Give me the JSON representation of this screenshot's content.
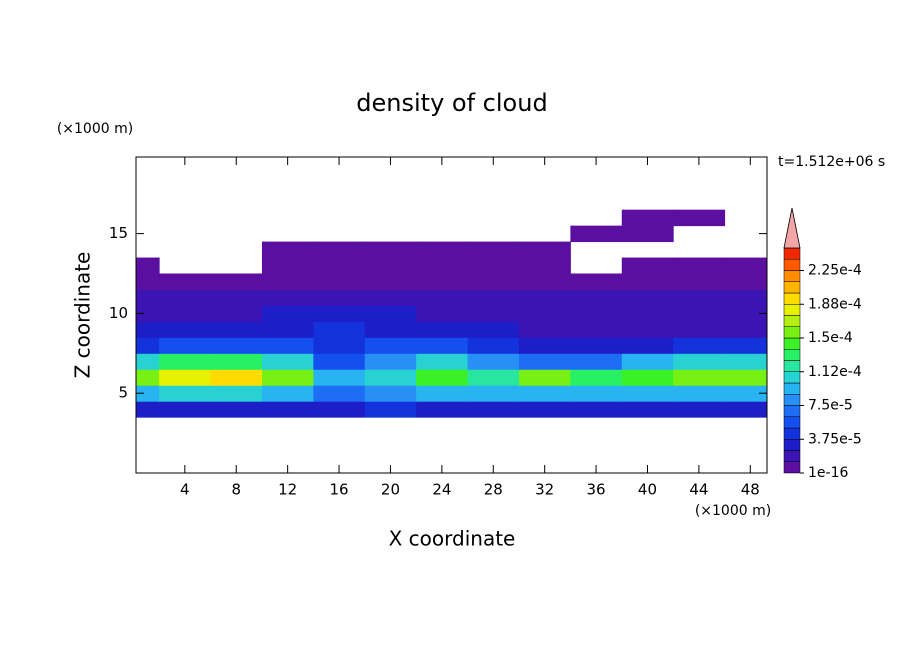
{
  "chart_data": {
    "type": "contour",
    "title": "density of cloud",
    "xlabel": "X coordinate",
    "ylabel": "Z coordinate",
    "x_unit": "(×1000 m)",
    "y_unit": "(×1000 m)",
    "time_label": "t=1.512e+06 s",
    "xlim": [
      0.2,
      49.3
    ],
    "ylim": [
      0,
      19.8
    ],
    "xticks": [
      4,
      8,
      12,
      16,
      20,
      24,
      28,
      32,
      36,
      40,
      44,
      48
    ],
    "yticks": [
      5,
      10,
      15
    ],
    "x": [
      0,
      4,
      8,
      12,
      16,
      20,
      24,
      28,
      32,
      36,
      40,
      44,
      48
    ],
    "z": [
      4,
      5,
      6,
      7,
      8,
      9,
      10,
      11,
      12,
      13,
      14,
      15,
      16
    ],
    "z_values": [
      [
        3e-05,
        3.5e-05,
        3.5e-05,
        3e-05,
        3e-05,
        4e-05,
        3e-05,
        3e-05,
        3e-05,
        3e-05,
        3e-05,
        3e-05,
        3e-05
      ],
      [
        9e-05,
        0.0001,
        0.0001,
        9e-05,
        7e-05,
        8e-05,
        9e-05,
        9e-05,
        9e-05,
        9e-05,
        9e-05,
        9e-05,
        9e-05
      ],
      [
        0.00015,
        0.00018,
        0.00019,
        0.00016,
        9e-05,
        0.00011,
        0.00014,
        0.00012,
        0.00015,
        0.00013,
        0.00014,
        0.00015,
        0.00016
      ],
      [
        0.00011,
        0.00013,
        0.00013,
        0.0001,
        6e-05,
        8e-05,
        0.0001,
        8e-05,
        7e-05,
        7e-05,
        9e-05,
        0.0001,
        0.0001
      ],
      [
        4e-05,
        5e-05,
        5e-05,
        5e-05,
        4e-05,
        5e-05,
        5e-05,
        4e-05,
        3.5e-05,
        3.5e-05,
        3.5e-05,
        4e-05,
        4e-05
      ],
      [
        2.5e-05,
        2.5e-05,
        2.5e-05,
        3e-05,
        4e-05,
        3e-05,
        2.5e-05,
        2.5e-05,
        2e-05,
        2e-05,
        2e-05,
        2e-05,
        2e-05
      ],
      [
        2e-05,
        2e-05,
        1.5e-05,
        2.5e-05,
        3.5e-05,
        2.5e-05,
        2e-05,
        1.5e-05,
        1.5e-05,
        1.5e-05,
        2e-05,
        2e-05,
        2e-05
      ],
      [
        1.5e-05,
        1.5e-05,
        1.5e-05,
        2e-05,
        2e-05,
        2e-05,
        1.5e-05,
        1.5e-05,
        1.5e-05,
        1.5e-05,
        1.5e-05,
        1.5e-05,
        1.5e-05
      ],
      [
        1e-05,
        1e-05,
        1e-05,
        1e-05,
        1e-05,
        1e-05,
        1e-05,
        1e-05,
        1e-05,
        1e-05,
        1e-05,
        1e-05,
        1e-05
      ],
      [
        5e-06,
        null,
        null,
        5e-06,
        5e-06,
        5e-06,
        5e-06,
        5e-06,
        5e-06,
        null,
        5e-06,
        5e-06,
        5e-06
      ],
      [
        null,
        null,
        null,
        5e-06,
        5e-06,
        5e-06,
        5e-06,
        5e-06,
        5e-06,
        null,
        null,
        null,
        null
      ],
      [
        null,
        null,
        null,
        null,
        null,
        null,
        null,
        null,
        null,
        5e-06,
        5e-06,
        null,
        null
      ],
      [
        null,
        null,
        null,
        null,
        null,
        null,
        null,
        null,
        null,
        null,
        5e-06,
        5e-06,
        null
      ]
    ],
    "clim": [
      0,
      0.00025
    ],
    "colorbar_ticks": [
      {
        "value": 1e-16,
        "label": "1e-16"
      },
      {
        "value": 3.75e-05,
        "label": "3.75e-5"
      },
      {
        "value": 7.5e-05,
        "label": "7.5e-5"
      },
      {
        "value": 0.0001125,
        "label": "1.12e-4"
      },
      {
        "value": 0.00015,
        "label": "1.5e-4"
      },
      {
        "value": 0.0001875,
        "label": "1.88e-4"
      },
      {
        "value": 0.000225,
        "label": "2.25e-4"
      }
    ],
    "colors": [
      "#5a0fa0",
      "#3c14b4",
      "#1e1ec8",
      "#1432dc",
      "#1450f0",
      "#1e6ef5",
      "#2890f5",
      "#28b4f0",
      "#28d2d2",
      "#28e6a0",
      "#28f064",
      "#3cf028",
      "#78f014",
      "#b4f014",
      "#e6f000",
      "#ffdc00",
      "#ffb400",
      "#ff8c00",
      "#ff5a00",
      "#f02800"
    ],
    "overflow_color": "#f4a6a6"
  }
}
